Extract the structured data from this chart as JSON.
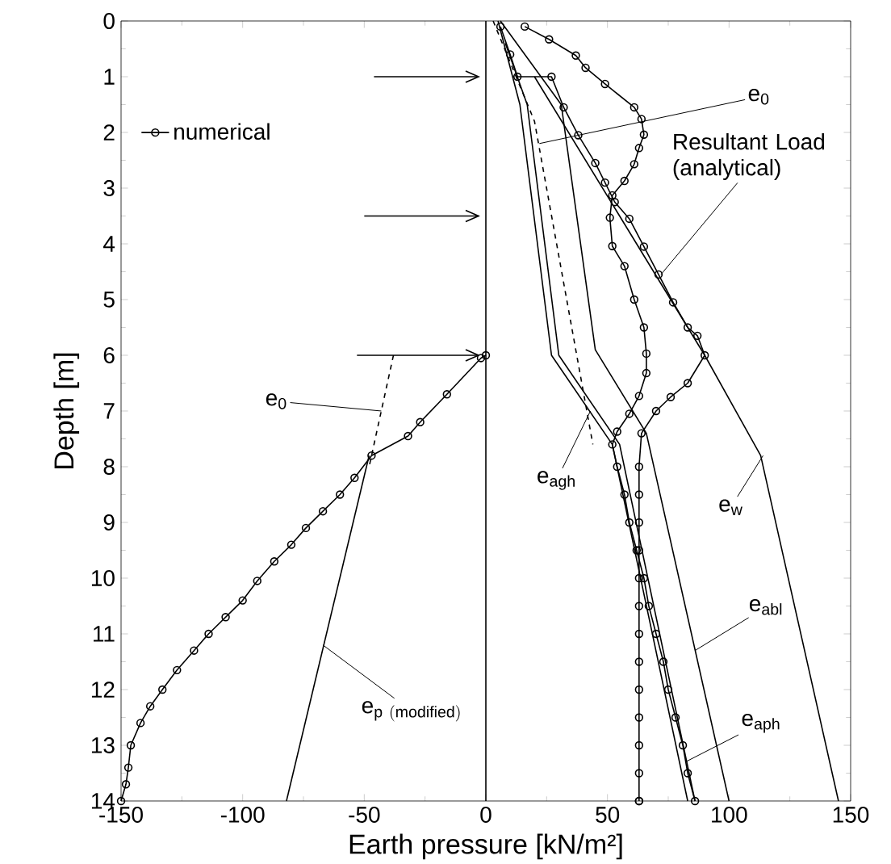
{
  "chart_data": {
    "type": "line",
    "xlabel": "Earth pressure  [kN/m²]",
    "ylabel": "Depth  [m]",
    "xlim": [
      -150,
      150
    ],
    "xticks": [
      -150,
      -100,
      -50,
      0,
      50,
      100,
      150
    ],
    "ylim": [
      14,
      0
    ],
    "yticks": [
      0,
      1,
      2,
      3,
      4,
      5,
      6,
      7,
      8,
      9,
      10,
      11,
      12,
      13,
      14
    ],
    "legend": "top left",
    "ref_lines": [
      {
        "axis": "x",
        "value": 0
      }
    ],
    "series": [
      {
        "name": "numerical",
        "color": "#000000",
        "marker": "circle",
        "x": [
          16,
          26,
          37,
          41,
          49,
          61,
          64,
          65,
          63,
          61,
          57,
          52,
          51,
          52,
          57,
          61,
          65,
          66,
          66,
          63,
          59,
          54,
          52,
          54,
          57,
          59,
          62,
          65,
          67,
          70,
          73,
          75,
          78,
          81,
          83,
          86
        ],
        "values": [
          0.1,
          0.33,
          0.62,
          0.84,
          1.13,
          1.55,
          1.76,
          2.04,
          2.28,
          2.57,
          2.87,
          3.13,
          3.53,
          4.04,
          4.4,
          5.0,
          5.5,
          5.97,
          6.32,
          6.73,
          7.05,
          7.37,
          7.6,
          8,
          8.5,
          9,
          9.5,
          10,
          10.5,
          11,
          11.5,
          12,
          12.5,
          13,
          13.5,
          14
        ]
      },
      {
        "color": "#000000",
        "marker": "circle",
        "x": [
          6,
          10,
          13,
          27,
          32,
          38,
          45,
          49,
          53,
          59,
          65,
          71,
          77,
          83,
          87,
          90,
          83,
          76,
          70,
          64,
          63,
          63,
          63,
          63,
          63,
          63,
          63,
          63,
          63,
          63,
          63,
          63,
          63,
          63
        ],
        "values": [
          0.1,
          0.6,
          1.0,
          1.0,
          1.55,
          2.05,
          2.55,
          2.9,
          3.25,
          3.55,
          4.05,
          4.55,
          5.05,
          5.5,
          5.65,
          6.0,
          6.5,
          6.75,
          7.0,
          7.4,
          8,
          8.5,
          9,
          9.5,
          10,
          10.5,
          11,
          11.5,
          12,
          12.5,
          13,
          13.5,
          14,
          14
        ]
      },
      {
        "color": "#000000",
        "marker": "circle",
        "x": [
          0,
          -2,
          -16,
          -27,
          -32,
          -47,
          -54,
          -60,
          -67,
          -74,
          -80,
          -87,
          -94,
          -100,
          -107,
          -114,
          -120,
          -127,
          -133,
          -138,
          -142,
          -146,
          -147,
          -148,
          -150
        ],
        "values": [
          6.0,
          6.05,
          6.7,
          7.2,
          7.45,
          7.8,
          8.2,
          8.5,
          8.8,
          9.1,
          9.4,
          9.7,
          10.05,
          10.4,
          10.7,
          11.0,
          11.3,
          11.65,
          12.0,
          12.3,
          12.6,
          13.0,
          13.4,
          13.7,
          14
        ]
      },
      {
        "color": "#000000",
        "line_style": "dashed",
        "x": [
          3,
          20,
          44
        ],
        "values": [
          0,
          1.8,
          7.6
        ]
      },
      {
        "color": "#000000",
        "x": [
          5,
          14,
          27,
          52,
          83
        ],
        "values": [
          0,
          1.5,
          6.0,
          7.6,
          14
        ]
      },
      {
        "color": "#000000",
        "x": [
          8,
          17,
          30,
          55,
          86
        ],
        "values": [
          0.4,
          1.5,
          6.0,
          7.6,
          14
        ]
      },
      {
        "color": "#000000",
        "x": [
          6,
          31,
          45,
          66,
          100
        ],
        "values": [
          0,
          1.5,
          5.9,
          7.4,
          14
        ]
      },
      {
        "color": "#000000",
        "x": [
          20,
          90,
          113,
          145
        ],
        "values": [
          1.0,
          6.0,
          7.8,
          14
        ]
      },
      {
        "color": "#000000",
        "line_style": "dashed",
        "x": [
          -38,
          -48
        ],
        "values": [
          6.0,
          8.0
        ]
      },
      {
        "color": "#000000",
        "x": [
          -82,
          -48
        ],
        "values": [
          14,
          7.8
        ]
      },
      {
        "color": "#000000",
        "x": [
          -46,
          -3
        ],
        "values": [
          1,
          1
        ]
      },
      {
        "color": "#000000",
        "x": [
          -50,
          -3
        ],
        "values": [
          3.5,
          3.5
        ]
      },
      {
        "color": "#000000",
        "x": [
          -53,
          -3
        ],
        "values": [
          6,
          6
        ]
      }
    ],
    "annotations": [
      {
        "text": "e$_{0}$",
        "x": 22,
        "y": 2.2
      },
      {
        "text": "Resultant Load (analytical)",
        "x": 72,
        "y": 4.55
      },
      {
        "text": "e$_{agh}$",
        "x": 43,
        "y": 7.0
      },
      {
        "text": "e$_{w}$",
        "x": 114,
        "y": 7.8
      },
      {
        "text": "e$_{abl}$",
        "x": 86,
        "y": 11.3
      },
      {
        "text": "e$_{aph}$",
        "x": 82,
        "y": 13.3
      },
      "e$_{0}$",
      {
        "text": "\\mathrm{e}_{\\mathrm{p\\ (modified)}}",
        "x": -67,
        "y": 11.2
      }
    ]
  }
}
